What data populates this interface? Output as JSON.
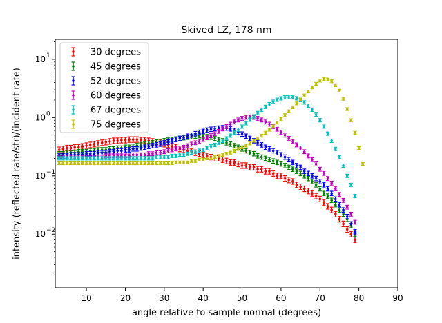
{
  "chart_data": {
    "type": "scatter",
    "title": "Skived LZ, 178 nm",
    "xlabel": "angle relative to sample normal (degrees)",
    "ylabel": "intensity (reflected rate/str)/(incident rate)",
    "xlim": [
      2,
      90
    ],
    "ylim": [
      0.0012,
      22
    ],
    "yscale": "log",
    "grid": false,
    "legend_position": "top-left",
    "xticks": [
      10,
      20,
      30,
      40,
      50,
      60,
      70,
      80,
      90
    ],
    "yticks": [
      {
        "value": 0.01,
        "label": "10^-2",
        "base": "10",
        "exp": "−2"
      },
      {
        "value": 0.1,
        "label": "10^-1",
        "base": "10",
        "exp": "−1"
      },
      {
        "value": 1,
        "label": "10^0",
        "base": "10",
        "exp": "0"
      },
      {
        "value": 10,
        "label": "10^1",
        "base": "10",
        "exp": "1"
      }
    ],
    "x_step": 1,
    "series": [
      {
        "name": "30 degrees",
        "color": "#ff0000",
        "x_start": 3,
        "values": [
          0.28,
          0.29,
          0.3,
          0.3,
          0.31,
          0.31,
          0.32,
          0.33,
          0.34,
          0.35,
          0.36,
          0.37,
          0.38,
          0.39,
          0.4,
          0.4,
          0.41,
          0.41,
          0.42,
          0.42,
          0.42,
          0.41,
          0.41,
          0.4,
          0.39,
          0.38,
          0.37,
          0.35,
          0.34,
          0.32,
          0.31,
          0.29,
          0.28,
          0.27,
          0.26,
          0.25,
          0.24,
          0.23,
          0.22,
          0.21,
          0.2,
          0.2,
          0.19,
          0.18,
          0.17,
          0.17,
          0.16,
          0.15,
          0.15,
          0.14,
          0.14,
          0.13,
          0.13,
          0.12,
          0.12,
          0.11,
          0.1,
          0.1,
          0.09,
          0.085,
          0.08,
          0.07,
          0.065,
          0.06,
          0.055,
          0.05,
          0.045,
          0.04,
          0.035,
          0.03,
          0.026,
          0.022,
          0.018,
          0.015,
          0.012,
          0.01,
          0.008
        ],
        "errors": [
          0.05,
          0.05,
          0.05,
          0.05,
          0.05,
          0.05,
          0.05,
          0.05,
          0.05,
          0.05,
          0.05,
          0.05,
          0.05,
          0.05,
          0.05,
          0.05,
          0.05,
          0.05,
          0.05,
          0.05,
          0.05,
          0.05,
          0.05,
          0.05,
          0.05,
          0.05,
          0.05,
          0.05,
          0.05,
          0.05,
          0.05,
          0.05,
          0.05,
          0.05,
          0.05,
          0.05,
          0.05,
          0.05,
          0.05,
          0.05,
          0.05,
          0.05,
          0.05,
          0.05,
          0.05,
          0.05,
          0.05,
          0.05,
          0.05,
          0.05,
          0.05,
          0.05,
          0.05,
          0.05,
          0.05,
          0.05,
          0.05,
          0.05,
          0.05,
          0.05,
          0.05,
          0.05,
          0.05,
          0.05,
          0.05,
          0.05,
          0.05,
          0.05,
          0.05,
          0.05,
          0.05,
          0.05,
          0.05,
          0.05,
          0.05,
          0.05,
          0.05
        ]
      },
      {
        "name": "45 degrees",
        "color": "#008000",
        "x_start": 3,
        "values": [
          0.24,
          0.24,
          0.25,
          0.25,
          0.25,
          0.26,
          0.26,
          0.26,
          0.27,
          0.27,
          0.28,
          0.28,
          0.28,
          0.29,
          0.29,
          0.3,
          0.3,
          0.31,
          0.31,
          0.32,
          0.33,
          0.34,
          0.35,
          0.36,
          0.37,
          0.38,
          0.39,
          0.4,
          0.41,
          0.42,
          0.43,
          0.44,
          0.45,
          0.46,
          0.47,
          0.48,
          0.49,
          0.48,
          0.47,
          0.46,
          0.44,
          0.42,
          0.4,
          0.37,
          0.35,
          0.33,
          0.31,
          0.29,
          0.27,
          0.25,
          0.24,
          0.22,
          0.21,
          0.2,
          0.19,
          0.18,
          0.17,
          0.16,
          0.15,
          0.14,
          0.13,
          0.12,
          0.11,
          0.1,
          0.09,
          0.08,
          0.07,
          0.06,
          0.05,
          0.045,
          0.038,
          0.032,
          0.026,
          0.022,
          0.018,
          0.014,
          0.01
        ],
        "errors": [
          0.04,
          0.04,
          0.04,
          0.04,
          0.04,
          0.04,
          0.04,
          0.04,
          0.04,
          0.04,
          0.04,
          0.04,
          0.04,
          0.04,
          0.04,
          0.04,
          0.04,
          0.04,
          0.04,
          0.04,
          0.04,
          0.04,
          0.04,
          0.04,
          0.04,
          0.04,
          0.04,
          0.04,
          0.04,
          0.04,
          0.04,
          0.04,
          0.04,
          0.04,
          0.04,
          0.04,
          0.04,
          0.04,
          0.04,
          0.04,
          0.04,
          0.04,
          0.04,
          0.04,
          0.04,
          0.04,
          0.04,
          0.04,
          0.04,
          0.04,
          0.04,
          0.04,
          0.04,
          0.04,
          0.04,
          0.04,
          0.04,
          0.04,
          0.04,
          0.04,
          0.04,
          0.04,
          0.04,
          0.04,
          0.04,
          0.04,
          0.04,
          0.04,
          0.04,
          0.04,
          0.04,
          0.04,
          0.04,
          0.04,
          0.04,
          0.04,
          0.04
        ]
      },
      {
        "name": "52 degrees",
        "color": "#0000ff",
        "x_start": 3,
        "values": [
          0.22,
          0.22,
          0.22,
          0.23,
          0.23,
          0.23,
          0.23,
          0.24,
          0.24,
          0.24,
          0.25,
          0.25,
          0.25,
          0.26,
          0.26,
          0.27,
          0.27,
          0.28,
          0.28,
          0.29,
          0.29,
          0.3,
          0.31,
          0.32,
          0.33,
          0.34,
          0.35,
          0.37,
          0.38,
          0.4,
          0.42,
          0.44,
          0.46,
          0.48,
          0.5,
          0.53,
          0.56,
          0.58,
          0.61,
          0.63,
          0.65,
          0.66,
          0.67,
          0.66,
          0.64,
          0.6,
          0.56,
          0.52,
          0.48,
          0.44,
          0.4,
          0.37,
          0.34,
          0.31,
          0.29,
          0.27,
          0.25,
          0.23,
          0.21,
          0.19,
          0.17,
          0.15,
          0.14,
          0.12,
          0.11,
          0.1,
          0.09,
          0.08,
          0.07,
          0.06,
          0.05,
          0.04,
          0.032,
          0.026,
          0.02,
          0.015,
          0.011
        ],
        "errors": [
          0.04,
          0.04,
          0.04,
          0.04,
          0.04,
          0.04,
          0.04,
          0.04,
          0.04,
          0.04,
          0.04,
          0.04,
          0.04,
          0.04,
          0.04,
          0.04,
          0.04,
          0.04,
          0.04,
          0.04,
          0.04,
          0.04,
          0.04,
          0.04,
          0.04,
          0.04,
          0.04,
          0.04,
          0.04,
          0.04,
          0.04,
          0.04,
          0.04,
          0.04,
          0.04,
          0.04,
          0.04,
          0.04,
          0.04,
          0.04,
          0.04,
          0.04,
          0.04,
          0.04,
          0.04,
          0.04,
          0.04,
          0.04,
          0.04,
          0.04,
          0.04,
          0.04,
          0.04,
          0.04,
          0.04,
          0.04,
          0.04,
          0.04,
          0.04,
          0.04,
          0.04,
          0.04,
          0.04,
          0.04,
          0.04,
          0.04,
          0.04,
          0.04,
          0.04,
          0.04,
          0.04,
          0.04,
          0.04,
          0.04,
          0.04,
          0.04,
          0.04
        ]
      },
      {
        "name": "60 degrees",
        "color": "#bf00bf",
        "x_start": 3,
        "values": [
          0.21,
          0.21,
          0.21,
          0.21,
          0.21,
          0.21,
          0.21,
          0.21,
          0.21,
          0.21,
          0.21,
          0.21,
          0.22,
          0.22,
          0.22,
          0.22,
          0.22,
          0.22,
          0.22,
          0.23,
          0.23,
          0.23,
          0.23,
          0.24,
          0.24,
          0.25,
          0.25,
          0.26,
          0.27,
          0.28,
          0.29,
          0.3,
          0.31,
          0.33,
          0.35,
          0.37,
          0.39,
          0.42,
          0.45,
          0.49,
          0.53,
          0.58,
          0.64,
          0.7,
          0.77,
          0.84,
          0.91,
          0.97,
          1.01,
          1.03,
          1.01,
          0.97,
          0.91,
          0.84,
          0.77,
          0.7,
          0.63,
          0.56,
          0.5,
          0.44,
          0.39,
          0.34,
          0.3,
          0.26,
          0.22,
          0.19,
          0.16,
          0.13,
          0.11,
          0.09,
          0.075,
          0.06,
          0.048,
          0.038,
          0.029,
          0.022,
          0.016
        ],
        "errors": [
          0.035,
          0.035,
          0.035,
          0.035,
          0.035,
          0.035,
          0.035,
          0.035,
          0.035,
          0.035,
          0.035,
          0.035,
          0.035,
          0.035,
          0.035,
          0.035,
          0.035,
          0.035,
          0.035,
          0.035,
          0.035,
          0.035,
          0.035,
          0.035,
          0.035,
          0.035,
          0.035,
          0.035,
          0.035,
          0.035,
          0.035,
          0.035,
          0.035,
          0.035,
          0.035,
          0.035,
          0.035,
          0.035,
          0.035,
          0.035,
          0.035,
          0.035,
          0.035,
          0.035,
          0.035,
          0.035,
          0.035,
          0.035,
          0.035,
          0.035,
          0.035,
          0.035,
          0.035,
          0.035,
          0.035,
          0.035,
          0.035,
          0.035,
          0.035,
          0.035,
          0.035,
          0.035,
          0.035,
          0.035,
          0.035,
          0.035,
          0.035,
          0.035,
          0.035,
          0.035,
          0.035,
          0.035,
          0.035,
          0.035,
          0.035,
          0.035,
          0.035
        ]
      },
      {
        "name": "67 degrees",
        "color": "#00bfbf",
        "x_start": 3,
        "values": [
          0.2,
          0.2,
          0.2,
          0.2,
          0.2,
          0.2,
          0.2,
          0.2,
          0.2,
          0.2,
          0.2,
          0.2,
          0.2,
          0.2,
          0.2,
          0.2,
          0.2,
          0.2,
          0.2,
          0.2,
          0.2,
          0.2,
          0.2,
          0.2,
          0.2,
          0.21,
          0.21,
          0.21,
          0.21,
          0.22,
          0.22,
          0.23,
          0.23,
          0.24,
          0.25,
          0.26,
          0.27,
          0.28,
          0.3,
          0.32,
          0.34,
          0.37,
          0.4,
          0.44,
          0.49,
          0.55,
          0.62,
          0.7,
          0.8,
          0.92,
          1.05,
          1.2,
          1.36,
          1.53,
          1.7,
          1.87,
          2.02,
          2.14,
          2.22,
          2.25,
          2.22,
          2.14,
          2.0,
          1.82,
          1.6,
          1.36,
          1.12,
          0.9,
          0.7,
          0.53,
          0.4,
          0.29,
          0.21,
          0.15,
          0.1,
          0.07,
          0.045
        ],
        "errors": [
          0.03,
          0.03,
          0.03,
          0.03,
          0.03,
          0.03,
          0.03,
          0.03,
          0.03,
          0.03,
          0.03,
          0.03,
          0.03,
          0.03,
          0.03,
          0.03,
          0.03,
          0.03,
          0.03,
          0.03,
          0.03,
          0.03,
          0.03,
          0.03,
          0.03,
          0.03,
          0.03,
          0.03,
          0.03,
          0.03,
          0.03,
          0.03,
          0.03,
          0.03,
          0.03,
          0.03,
          0.03,
          0.03,
          0.03,
          0.03,
          0.03,
          0.03,
          0.03,
          0.03,
          0.03,
          0.03,
          0.03,
          0.03,
          0.03,
          0.03,
          0.03,
          0.03,
          0.03,
          0.03,
          0.03,
          0.03,
          0.03,
          0.03,
          0.03,
          0.03,
          0.03,
          0.03,
          0.03,
          0.03,
          0.03,
          0.03,
          0.03,
          0.03,
          0.03,
          0.03,
          0.03,
          0.03,
          0.03,
          0.03,
          0.03,
          0.03,
          0.03
        ]
      },
      {
        "name": "75 degrees",
        "color": "#bfbf00",
        "x_start": 3,
        "values": [
          0.165,
          0.165,
          0.165,
          0.165,
          0.165,
          0.165,
          0.165,
          0.165,
          0.165,
          0.165,
          0.165,
          0.165,
          0.165,
          0.165,
          0.165,
          0.165,
          0.165,
          0.165,
          0.165,
          0.165,
          0.165,
          0.165,
          0.165,
          0.165,
          0.165,
          0.165,
          0.165,
          0.165,
          0.165,
          0.165,
          0.17,
          0.17,
          0.17,
          0.17,
          0.18,
          0.18,
          0.19,
          0.19,
          0.2,
          0.2,
          0.21,
          0.22,
          0.23,
          0.24,
          0.25,
          0.27,
          0.29,
          0.31,
          0.33,
          0.36,
          0.4,
          0.44,
          0.49,
          0.55,
          0.62,
          0.71,
          0.82,
          0.95,
          1.1,
          1.28,
          1.5,
          1.75,
          2.05,
          2.4,
          2.8,
          3.3,
          3.8,
          4.3,
          4.6,
          4.5,
          4.2,
          3.6,
          2.9,
          2.1,
          1.4,
          0.9,
          0.55,
          0.3,
          0.16
        ],
        "errors": [
          0.025,
          0.025,
          0.025,
          0.025,
          0.025,
          0.025,
          0.025,
          0.025,
          0.025,
          0.025,
          0.025,
          0.025,
          0.025,
          0.025,
          0.025,
          0.025,
          0.025,
          0.025,
          0.025,
          0.025,
          0.025,
          0.025,
          0.025,
          0.025,
          0.025,
          0.025,
          0.025,
          0.025,
          0.025,
          0.025,
          0.025,
          0.025,
          0.025,
          0.025,
          0.025,
          0.025,
          0.025,
          0.025,
          0.025,
          0.025,
          0.025,
          0.025,
          0.025,
          0.025,
          0.025,
          0.025,
          0.025,
          0.025,
          0.025,
          0.025,
          0.025,
          0.025,
          0.025,
          0.025,
          0.025,
          0.025,
          0.025,
          0.025,
          0.025,
          0.025,
          0.025,
          0.025,
          0.025,
          0.025,
          0.025,
          0.025,
          0.025,
          0.025,
          0.025,
          0.025,
          0.025,
          0.025,
          0.025,
          0.025,
          0.025,
          0.025,
          0.025,
          0.025,
          0.025
        ]
      }
    ]
  }
}
